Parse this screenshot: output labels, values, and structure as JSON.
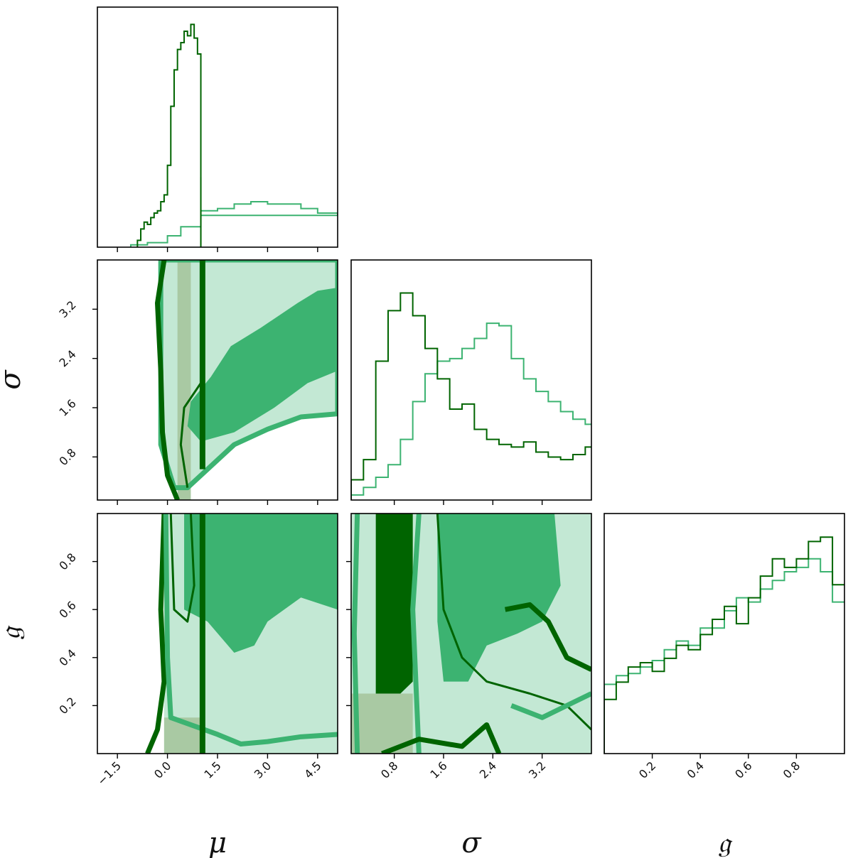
{
  "chart_data": {
    "type": "corner",
    "parameters": [
      {
        "key": "mu",
        "label": "μ",
        "range": [
          -2.1,
          5.1
        ],
        "ticks": [
          "−1.5",
          "0.0",
          "1.5",
          "3.0",
          "4.5"
        ],
        "tick_values": [
          -1.5,
          0.0,
          1.5,
          3.0,
          4.5
        ]
      },
      {
        "key": "sigma",
        "label": "σ",
        "range": [
          0.1,
          4.0
        ],
        "ticks": [
          "0.8",
          "1.6",
          "2.4",
          "3.2"
        ],
        "tick_values": [
          0.8,
          1.6,
          2.4,
          3.2
        ]
      },
      {
        "key": "g",
        "label": "𝔤",
        "range": [
          0.0,
          1.0
        ],
        "ticks": [
          "0.2",
          "0.4",
          "0.6",
          "0.8"
        ],
        "tick_values": [
          0.2,
          0.4,
          0.6,
          0.8
        ]
      }
    ],
    "series": [
      {
        "color": "#006400"
      },
      {
        "color": "#3cb371"
      }
    ],
    "hist_mu": {
      "x": [
        -0.9,
        -0.8,
        -0.7,
        -0.6,
        -0.5,
        -0.4,
        -0.3,
        -0.2,
        -0.1,
        0.0,
        0.1,
        0.2,
        0.3,
        0.4,
        0.5,
        0.6,
        0.7,
        0.8,
        0.9,
        1.0
      ],
      "dark": [
        0.03,
        0.08,
        0.11,
        0.1,
        0.13,
        0.15,
        0.16,
        0.2,
        0.23,
        0.36,
        0.62,
        0.78,
        0.87,
        0.9,
        0.95,
        0.93,
        0.98,
        0.92,
        0.85,
        0.0
      ],
      "light_x": [
        -1.1,
        -0.6,
        0.0,
        0.4,
        1.0,
        1.5,
        2.0,
        2.5,
        3.0,
        3.5,
        4.0,
        4.5,
        5.1
      ],
      "light": [
        0.01,
        0.02,
        0.05,
        0.09,
        0.16,
        0.17,
        0.19,
        0.2,
        0.19,
        0.19,
        0.17,
        0.15,
        0.14
      ]
    },
    "hist_sigma": {
      "x": [
        0.1,
        0.3,
        0.5,
        0.7,
        0.9,
        1.1,
        1.3,
        1.5,
        1.7,
        1.9,
        2.1,
        2.3,
        2.5,
        2.7,
        2.9,
        3.1,
        3.3,
        3.5,
        3.7,
        3.9
      ],
      "dark": [
        0.08,
        0.16,
        0.55,
        0.75,
        0.82,
        0.73,
        0.6,
        0.48,
        0.36,
        0.38,
        0.28,
        0.24,
        0.22,
        0.21,
        0.23,
        0.19,
        0.17,
        0.16,
        0.18,
        0.21
      ],
      "light": [
        0.02,
        0.05,
        0.09,
        0.14,
        0.24,
        0.39,
        0.5,
        0.55,
        0.56,
        0.6,
        0.64,
        0.7,
        0.69,
        0.56,
        0.48,
        0.43,
        0.39,
        0.35,
        0.32,
        0.3
      ]
    },
    "hist_g": {
      "x": [
        0.0,
        0.05,
        0.1,
        0.15,
        0.2,
        0.25,
        0.3,
        0.35,
        0.4,
        0.45,
        0.5,
        0.55,
        0.6,
        0.65,
        0.7,
        0.75,
        0.8,
        0.85,
        0.9,
        0.95
      ],
      "dark": [
        0.25,
        0.33,
        0.4,
        0.42,
        0.38,
        0.44,
        0.5,
        0.48,
        0.55,
        0.62,
        0.68,
        0.6,
        0.72,
        0.82,
        0.9,
        0.86,
        0.9,
        0.98,
        1.0,
        0.78
      ],
      "light": [
        0.32,
        0.36,
        0.37,
        0.4,
        0.43,
        0.48,
        0.52,
        0.5,
        0.58,
        0.58,
        0.66,
        0.72,
        0.7,
        0.76,
        0.8,
        0.84,
        0.86,
        0.9,
        0.84,
        0.7
      ]
    },
    "contours": {
      "mu_sigma": {
        "light_fill": [
          [
            -0.2,
            4.0
          ],
          [
            5.1,
            4.0
          ],
          [
            5.1,
            1.5
          ],
          [
            4.0,
            1.45
          ],
          [
            3.0,
            1.25
          ],
          [
            2.0,
            1.0
          ],
          [
            1.2,
            0.6
          ],
          [
            0.6,
            0.3
          ],
          [
            0.2,
            0.3
          ],
          [
            -0.2,
            1.0
          ]
        ],
        "mid_fill": [
          [
            1.9,
            2.6
          ],
          [
            2.8,
            2.9
          ],
          [
            3.9,
            3.3
          ],
          [
            4.5,
            3.5
          ],
          [
            5.1,
            3.55
          ],
          [
            5.1,
            2.2
          ],
          [
            4.2,
            2.0
          ],
          [
            3.2,
            1.6
          ],
          [
            2.0,
            1.2
          ],
          [
            1.0,
            1.05
          ],
          [
            0.6,
            1.3
          ],
          [
            0.7,
            1.7
          ],
          [
            1.3,
            2.1
          ]
        ],
        "dark_fill": [
          [
            0.3,
            4.0
          ],
          [
            0.7,
            4.0
          ],
          [
            0.7,
            0.1
          ],
          [
            0.3,
            0.1
          ]
        ],
        "vline_mu": 1.05
      },
      "mu_g": {
        "vline_mu": 1.05,
        "mid_fill": [
          [
            0.5,
            1.0
          ],
          [
            5.1,
            1.0
          ],
          [
            5.1,
            0.6
          ],
          [
            4.0,
            0.65
          ],
          [
            3.0,
            0.55
          ],
          [
            2.6,
            0.45
          ],
          [
            2.0,
            0.42
          ],
          [
            1.2,
            0.55
          ],
          [
            0.5,
            0.6
          ]
        ]
      },
      "sigma_g": {
        "dark_fill": [
          [
            0.5,
            1.0
          ],
          [
            1.1,
            1.0
          ],
          [
            1.1,
            0.3
          ],
          [
            0.9,
            0.25
          ],
          [
            0.5,
            0.25
          ]
        ],
        "mid_fill": [
          [
            1.5,
            1.0
          ],
          [
            3.4,
            1.0
          ],
          [
            3.5,
            0.7
          ],
          [
            3.2,
            0.55
          ],
          [
            2.8,
            0.5
          ],
          [
            2.3,
            0.45
          ],
          [
            2.0,
            0.3
          ],
          [
            1.6,
            0.3
          ],
          [
            1.5,
            0.55
          ]
        ]
      }
    },
    "grid": false,
    "legend": "none"
  }
}
